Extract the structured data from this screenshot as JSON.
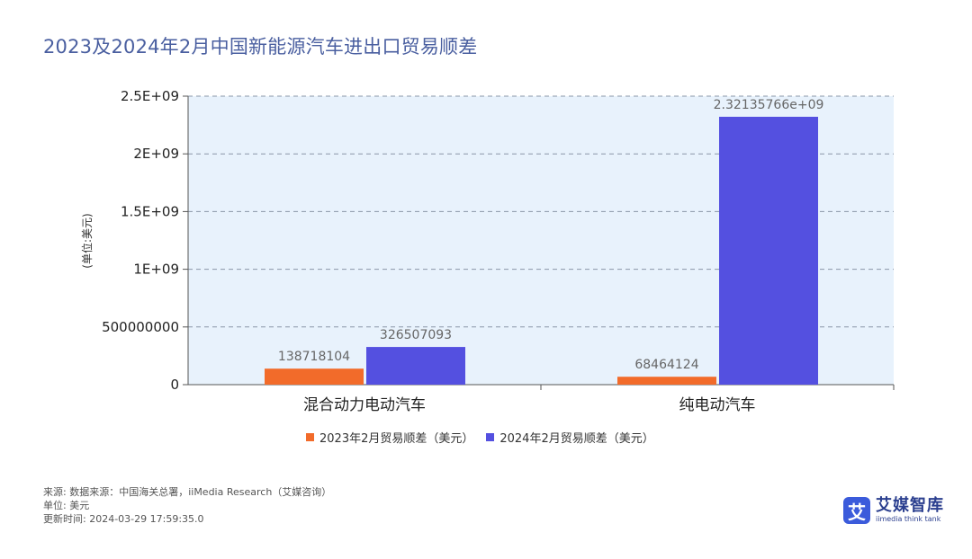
{
  "title": "2023及2024年2月中国新能源汽车进出口贸易顺差",
  "colors": {
    "series1": "#f26b2a",
    "series2": "#5450e0",
    "plot_bg": "#e8f2fc",
    "grid": "#8a96a8",
    "title": "#4a5fa0"
  },
  "chart_data": {
    "type": "bar",
    "categories": [
      "混合动力电动汽车",
      "纯电动汽车"
    ],
    "series": [
      {
        "name": "2023年2月贸易顺差（美元）",
        "values": [
          138718104,
          68464124
        ],
        "labels": [
          "138718104",
          "68464124"
        ]
      },
      {
        "name": "2024年2月贸易顺差（美元）",
        "values": [
          326507093,
          2321357660
        ],
        "labels": [
          "326507093",
          "2.32135766e+09"
        ]
      }
    ],
    "ylabel": "(单位:美元)",
    "ylim": [
      0,
      2500000000
    ],
    "yticks": [
      0,
      500000000,
      1000000000,
      1500000000,
      2000000000,
      2500000000
    ],
    "ytick_labels": [
      "0",
      "500000000",
      "1E+09",
      "1.5E+09",
      "2E+09",
      "2.5E+09"
    ],
    "grid": true,
    "legend_position": "bottom"
  },
  "footer": {
    "source": "来源: 数据来源：中国海关总署，iiMedia Research（艾媒咨询）",
    "unit": "单位: 美元",
    "updated": "更新时间: 2024-03-29 17:59:35.0"
  },
  "logo": {
    "mark": "艾",
    "name": "艾媒智库",
    "tagline": "iimedia think tank"
  }
}
